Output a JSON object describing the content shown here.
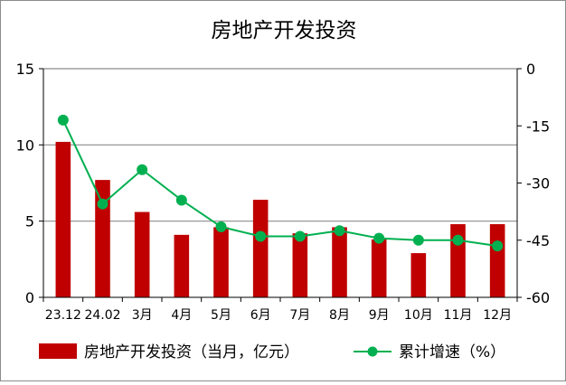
{
  "chart_data": {
    "type": "bar+line",
    "title": "房地产开发投资",
    "categories": [
      "23.12",
      "24.02",
      "3月",
      "4月",
      "5月",
      "6月",
      "7月",
      "8月",
      "9月",
      "10月",
      "11月",
      "12月"
    ],
    "series": [
      {
        "name": "房地产开发投资（当月，亿元）",
        "type": "bar",
        "axis": "left",
        "color": "#c00000",
        "values": [
          10.2,
          7.7,
          5.6,
          4.1,
          4.6,
          6.4,
          4.2,
          4.6,
          3.8,
          2.9,
          4.8,
          4.8
        ]
      },
      {
        "name": "累计增速（%）",
        "type": "line",
        "axis": "right",
        "color": "#00b050",
        "values": [
          -13.5,
          -35.5,
          -26.5,
          -34.5,
          -41.5,
          -44.0,
          -44.0,
          -42.5,
          -44.5,
          -45.0,
          -45.0,
          -46.5
        ]
      }
    ],
    "left_axis": {
      "min": 0,
      "max": 15,
      "ticks": [
        0,
        5,
        10,
        15
      ]
    },
    "right_axis": {
      "min": -60,
      "max": 0,
      "ticks": [
        0,
        -15,
        -30,
        -45,
        -60
      ]
    },
    "grid": "horizontal",
    "legend_position": "bottom"
  }
}
